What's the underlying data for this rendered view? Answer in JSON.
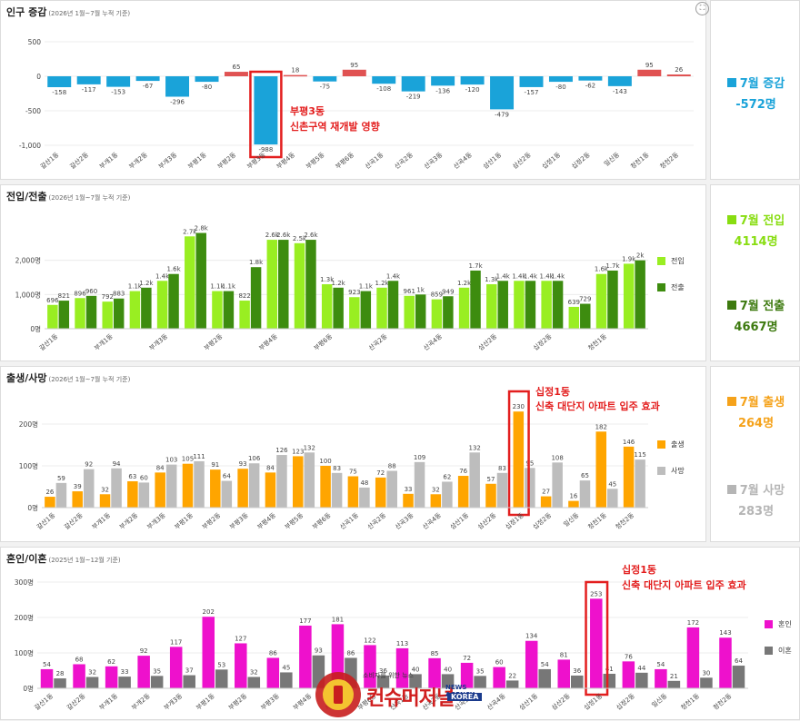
{
  "panels": {
    "population": {
      "title": "인구 증감",
      "subtitle": "(2026년 1월~7월 누적 기준)"
    },
    "migration": {
      "title": "전입/전출",
      "subtitle": "(2026년 1월~7월 누적 기준)"
    },
    "births": {
      "title": "출생/사망",
      "subtitle": "(2026년 1월~7월 누적 기준)"
    },
    "marriage": {
      "title": "혼인/이혼",
      "subtitle": "(2025년 1월~12월 기준)"
    }
  },
  "side": {
    "pop_label": "7월 증감",
    "pop_value": "-572명",
    "in_label": "7월 전입",
    "in_value": "4114명",
    "out_label": "7월 전출",
    "out_value": "4667명",
    "birth_label": "7월 출생",
    "birth_value": "264명",
    "death_label": "7월 사망",
    "death_value": "283명"
  },
  "annotations": {
    "pop_line1": "부평3동",
    "pop_line2": "신촌구역 재개발 영향",
    "birth_line1": "십정1동",
    "birth_line2": "신축 대단지 아파트 입주 효과",
    "mar_line1": "십정1동",
    "mar_line2": "신축 대단지 아파트 입주 효과"
  },
  "watermark": {
    "line1": "소비자를 위한 뉴스",
    "brand": "컨슈머저널",
    "agency": "NEWS AGENCY",
    "country": "KOREA",
    "seal": "CONSUMER JOURNAL"
  },
  "colors": {
    "blue": "#1aa3d9",
    "red": "#e05252",
    "lime": "#99ee22",
    "dark": "#3d8c0f",
    "orange": "#ffa500",
    "gray": "#bdbdbd",
    "magenta": "#ee11cc",
    "darkgray": "#777777",
    "highlight": "#e31e1e"
  },
  "chart_data": [
    {
      "type": "bar",
      "title": "인구 증감",
      "categories": [
        "갈산1동",
        "갈산2동",
        "부개1동",
        "부개2동",
        "부개3동",
        "부평1동",
        "부평2동",
        "부평3동",
        "부평4동",
        "부평5동",
        "부평6동",
        "산곡1동",
        "산곡2동",
        "산곡3동",
        "산곡4동",
        "삼산1동",
        "삼산2동",
        "십정1동",
        "십정2동",
        "일신동",
        "청천1동",
        "청천2동"
      ],
      "tick_labels": [
        "갈산1동",
        "갈산2동",
        "부개1동",
        "부개2동",
        "부개3동",
        "부평1동",
        "부평2동",
        "부평3동",
        "부평4동",
        "부평5동",
        "부평6동",
        "산곡1동",
        "산곡2동",
        "산곡3동",
        "산곡4동",
        "삼산1동",
        "삼산2동",
        "십정1동",
        "십정2동",
        "일신동",
        "청천1동",
        "청천2동"
      ],
      "values": [
        -158,
        -117,
        -153,
        -67,
        -296,
        -80,
        65,
        -988,
        18,
        -75,
        95,
        -108,
        -219,
        -136,
        -120,
        -479,
        -157,
        -80,
        -62,
        -143,
        95,
        26
      ],
      "value_labels": [
        "-158",
        "-117",
        "-153",
        "-67",
        "-296",
        "-80",
        "65",
        "-988",
        "18",
        "-75",
        "95",
        "-108",
        "-219",
        "-136",
        "-120",
        "-479",
        "-157",
        "-80",
        "-62",
        "-143",
        "95",
        "26"
      ],
      "yticks": [
        "500",
        "0",
        "-500",
        "-1,000"
      ],
      "ylim": [
        -1000,
        500
      ]
    },
    {
      "type": "bar",
      "title": "전입/전출",
      "categories": [
        "갈산1동",
        "갈산2동",
        "부개1동",
        "부개2동",
        "부개3동",
        "부평1동",
        "부평2동",
        "부평3동",
        "부평4동",
        "부평5동",
        "부평6동",
        "산곡1동",
        "산곡2동",
        "산곡3동",
        "산곡4동",
        "삼산1동",
        "삼산2동",
        "십정1동",
        "십정2동",
        "일신동",
        "청천1동",
        "청천2동"
      ],
      "tick_labels": [
        "갈산1동",
        "",
        "부개1동",
        "",
        "부개3동",
        "",
        "부평2동",
        "",
        "부평4동",
        "",
        "부평6동",
        "",
        "산곡2동",
        "",
        "산곡4동",
        "",
        "삼산2동",
        "",
        "십정2동",
        "",
        "청천1동",
        ""
      ],
      "series": [
        {
          "name": "전입",
          "values": [
            696,
            896,
            792,
            1100,
            1400,
            2700,
            1100,
            822,
            2600,
            2500,
            1300,
            923,
            1200,
            961,
            859,
            1200,
            1300,
            1400,
            1400,
            639,
            1600,
            1900
          ],
          "labels": [
            "696",
            "896",
            "792",
            "1.1k",
            "1.4k",
            "2.7k",
            "1.1k",
            "822",
            "2.6k",
            "2.5k",
            "1.3k",
            "923",
            "1.2k",
            "961",
            "859",
            "1.2k",
            "1.3k",
            "1.4k",
            "1.4k",
            "639",
            "1.6k",
            "1.9k"
          ]
        },
        {
          "name": "전출",
          "values": [
            821,
            960,
            883,
            1200,
            1600,
            2800,
            1100,
            1800,
            2600,
            2600,
            1200,
            1100,
            1400,
            1000,
            949,
            1700,
            1400,
            1400,
            1400,
            729,
            1700,
            2000
          ],
          "labels": [
            "821",
            "960",
            "883",
            "1.2k",
            "1.6k",
            "2.8k",
            "1.1k",
            "1.8k",
            "2.6k",
            "2.6k",
            "1.2k",
            "1.1k",
            "1.4k",
            "1k",
            "949",
            "1.7k",
            "1.4k",
            "1.4k",
            "1.4k",
            "729",
            "1.7k",
            "2k"
          ]
        }
      ],
      "yticks": [
        "2,000명",
        "1,000명",
        "0명"
      ],
      "ylim": [
        0,
        3000
      ]
    },
    {
      "type": "bar",
      "title": "출생/사망",
      "categories": [
        "갈산1동",
        "갈산2동",
        "부개1동",
        "부개2동",
        "부개3동",
        "부평1동",
        "부평2동",
        "부평3동",
        "부평4동",
        "부평5동",
        "부평6동",
        "산곡1동",
        "산곡2동",
        "산곡3동",
        "산곡4동",
        "삼산1동",
        "삼산2동",
        "십정1동",
        "십정2동",
        "일신동",
        "청천1동",
        "청천2동"
      ],
      "tick_labels": [
        "갈산1동",
        "갈산2동",
        "부개1동",
        "부개2동",
        "부개3동",
        "부평1동",
        "부평2동",
        "부평3동",
        "부평4동",
        "부평5동",
        "부평6동",
        "산곡1동",
        "산곡2동",
        "산곡3동",
        "산곡4동",
        "삼산1동",
        "삼산2동",
        "십정1동",
        "십정2동",
        "일신동",
        "청천1동",
        "청천2동"
      ],
      "series": [
        {
          "name": "출생",
          "values": [
            26,
            39,
            32,
            63,
            84,
            105,
            91,
            93,
            84,
            123,
            100,
            75,
            72,
            33,
            32,
            76,
            57,
            230,
            27,
            16,
            182,
            146
          ]
        },
        {
          "name": "사망",
          "values": [
            59,
            92,
            94,
            60,
            103,
            111,
            64,
            106,
            126,
            132,
            83,
            48,
            88,
            109,
            62,
            132,
            83,
            95,
            108,
            65,
            45,
            115
          ]
        }
      ],
      "yticks": [
        "200명",
        "100명",
        "0명"
      ],
      "ylim": [
        0,
        250
      ]
    },
    {
      "type": "bar",
      "title": "혼인/이혼",
      "categories": [
        "갈산1동",
        "갈산2동",
        "부개1동",
        "부개2동",
        "부개3동",
        "부평1동",
        "부평2동",
        "부평3동",
        "부평4동",
        "부평5동",
        "부평6동",
        "산곡1동",
        "산곡2동",
        "산곡3동",
        "산곡4동",
        "삼산1동",
        "삼산2동",
        "십정1동",
        "십정2동",
        "일신동",
        "청천1동",
        "청천2동"
      ],
      "tick_labels": [
        "갈산1동",
        "갈산2동",
        "부개1동",
        "부개2동",
        "부개3동",
        "부평1동",
        "부평2동",
        "부평3동",
        "부평4동",
        "부평5동",
        "부평6동",
        "산곡1동",
        "산곡2동",
        "산곡3동",
        "산곡4동",
        "삼산1동",
        "삼산2동",
        "십정1동",
        "십정2동",
        "일신동",
        "청천1동",
        "청천2동"
      ],
      "series": [
        {
          "name": "혼인",
          "values": [
            54,
            68,
            62,
            92,
            117,
            202,
            127,
            86,
            177,
            181,
            122,
            113,
            85,
            72,
            60,
            134,
            81,
            253,
            76,
            54,
            172,
            143
          ]
        },
        {
          "name": "이혼",
          "values": [
            28,
            32,
            33,
            35,
            37,
            53,
            32,
            45,
            93,
            86,
            36,
            40,
            40,
            35,
            22,
            54,
            36,
            41,
            44,
            21,
            30,
            64
          ]
        }
      ],
      "yticks": [
        "300명",
        "200명",
        "100명",
        "0명"
      ],
      "ylim": [
        0,
        300
      ]
    }
  ]
}
